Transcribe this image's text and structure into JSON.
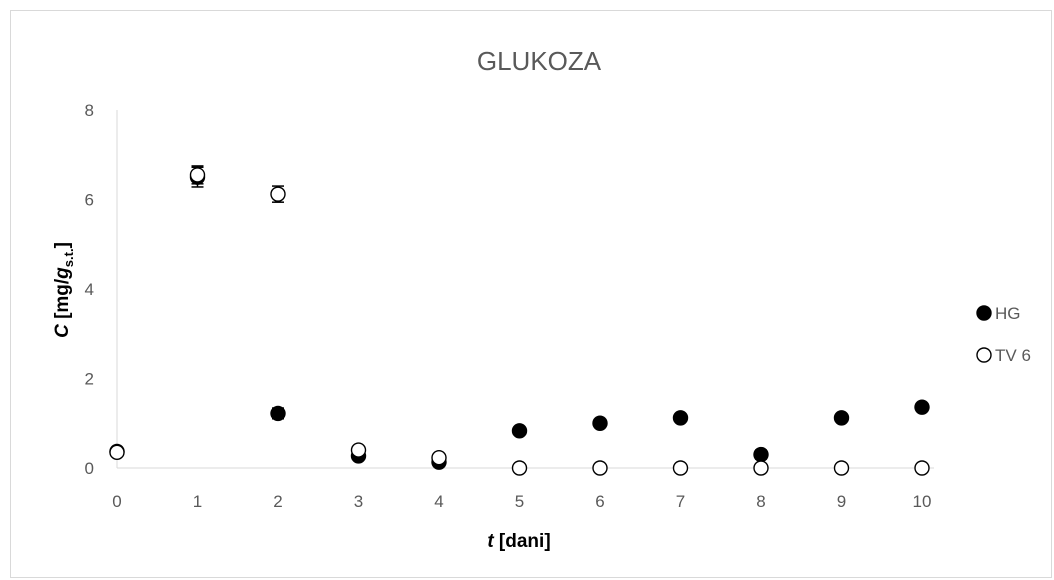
{
  "chart_data": {
    "type": "scatter",
    "title": "GLUKOZA",
    "xlabel": {
      "italic": "t",
      "rest": " [dani]"
    },
    "ylabel": {
      "italic": "C",
      "open": " [mg/",
      "g": "g",
      "sub": "s.t.",
      "close": "]"
    },
    "xlim": [
      0,
      10
    ],
    "ylim": [
      0,
      8
    ],
    "x_ticks": [
      0,
      1,
      2,
      3,
      4,
      5,
      6,
      7,
      8,
      9,
      10
    ],
    "y_ticks": [
      0,
      2,
      4,
      6,
      8
    ],
    "grid": false,
    "legend_position": "right",
    "series": [
      {
        "name": "HG",
        "marker": "filled-circle",
        "color": "#000000",
        "points": [
          {
            "x": 0,
            "y": 0.37
          },
          {
            "x": 1,
            "y": 6.5,
            "err": 0.22
          },
          {
            "x": 2,
            "y": 1.22,
            "err": 0.12
          },
          {
            "x": 3,
            "y": 0.27
          },
          {
            "x": 4,
            "y": 0.13
          },
          {
            "x": 5,
            "y": 0.83
          },
          {
            "x": 6,
            "y": 1.0
          },
          {
            "x": 7,
            "y": 1.12
          },
          {
            "x": 8,
            "y": 0.3,
            "err": 0.1
          },
          {
            "x": 9,
            "y": 1.12
          },
          {
            "x": 10,
            "y": 1.36
          }
        ]
      },
      {
        "name": "TV 6",
        "marker": "open-circle",
        "color": "#000000",
        "points": [
          {
            "x": 0,
            "y": 0.35
          },
          {
            "x": 1,
            "y": 6.55,
            "err": 0.2
          },
          {
            "x": 2,
            "y": 6.12,
            "err": 0.18
          },
          {
            "x": 3,
            "y": 0.4
          },
          {
            "x": 4,
            "y": 0.23
          },
          {
            "x": 5,
            "y": 0.0
          },
          {
            "x": 6,
            "y": 0.0
          },
          {
            "x": 7,
            "y": 0.0
          },
          {
            "x": 8,
            "y": 0.0
          },
          {
            "x": 9,
            "y": 0.0
          },
          {
            "x": 10,
            "y": 0.0
          }
        ]
      }
    ]
  }
}
